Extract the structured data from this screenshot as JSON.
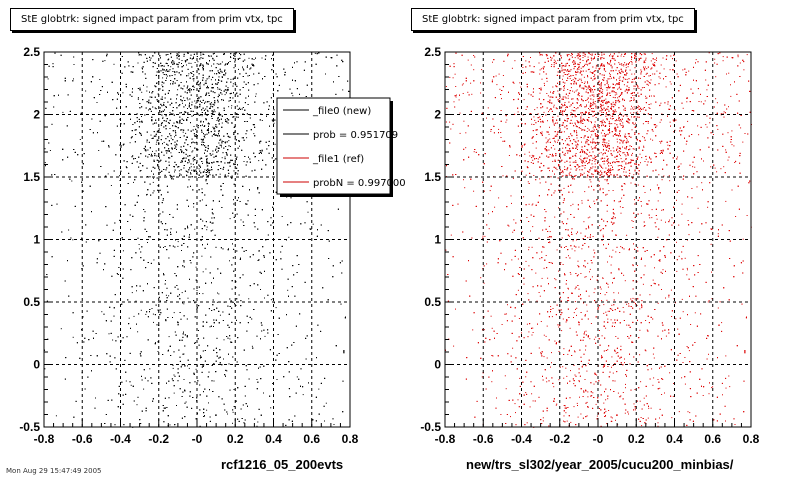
{
  "footer_text": "Mon Aug 29 15:47:49 2005",
  "chart_data": [
    {
      "type": "scatter",
      "title": "StE globtrk: signed impact param from prim vtx, tpc",
      "xlabel": "rcf1216_05_200evts",
      "xlim": [
        -0.8,
        0.8
      ],
      "ylim": [
        -0.5,
        2.5
      ],
      "xticks": [
        "-0.8",
        "-0.6",
        "-0.4",
        "-0.2",
        "-0",
        "0.2",
        "0.4",
        "0.6",
        "0.8"
      ],
      "yticks": [
        "-0.5",
        "0",
        "0.5",
        "1",
        "1.5",
        "2",
        "2.5"
      ],
      "grid": true,
      "color": "#000000",
      "density": "points concentrated near x = 0 with a dense band for y between 1.5 and 2.5",
      "legend": {
        "placement": "top-right",
        "entries": [
          {
            "label": "_file0 (new)",
            "color": "#000000"
          },
          {
            "label": "prob = 0.951709",
            "color": "#000000"
          },
          {
            "label": "_file1 (ref)",
            "color": "#cc0000"
          },
          {
            "label": "probN = 0.997000",
            "color": "#cc0000"
          }
        ]
      }
    },
    {
      "type": "scatter",
      "title": "StE globtrk: signed impact param from prim vtx, tpc",
      "xlabel": "new/trs_sl302/year_2005/cucu200_minbias/",
      "xlim": [
        -0.8,
        0.8
      ],
      "ylim": [
        -0.5,
        2.5
      ],
      "xticks": [
        "-0.8",
        "-0.6",
        "-0.4",
        "-0.2",
        "-0",
        "0.2",
        "0.4",
        "0.6",
        "0.8"
      ],
      "yticks": [
        "-0.5",
        "0",
        "0.5",
        "1",
        "1.5",
        "2",
        "2.5"
      ],
      "grid": true,
      "color": "#dd0000",
      "density": "points concentrated near x = 0 with a dense band for y between 1.5 and 2.5"
    }
  ]
}
